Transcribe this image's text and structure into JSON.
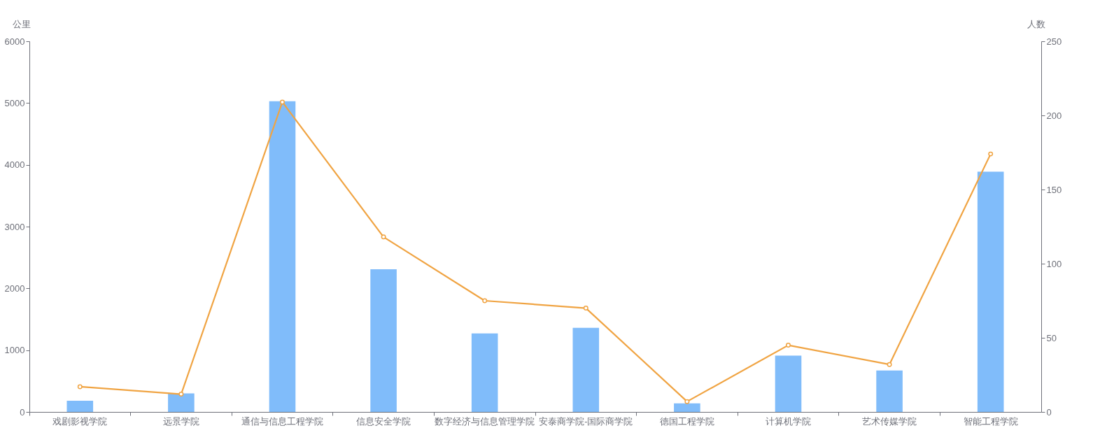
{
  "chart_data": {
    "type": "bar",
    "ylabel": "公里",
    "y2label": "人数",
    "categories": [
      "戏剧影视学院",
      "远景学院",
      "通信与信息工程学院",
      "信息安全学院",
      "数字经济与信息管理学院",
      "安泰商学院-国际商学院",
      "德国工程学院",
      "计算机学院",
      "艺术传媒学院",
      "智能工程学院"
    ],
    "series": [
      {
        "color": "#80bcfa",
        "values": [
          180,
          300,
          5030,
          2310,
          1270,
          1360,
          140,
          910,
          670,
          3890
        ]
      },
      {
        "type": "line",
        "axis": "y2",
        "color": "#f0a443",
        "marker": "circle",
        "values": [
          17,
          12,
          209,
          118,
          75,
          70,
          7,
          45,
          32,
          174
        ]
      }
    ],
    "ylim": [
      0,
      6000
    ],
    "yticks": [
      0,
      1000,
      2000,
      3000,
      4000,
      5000,
      6000
    ],
    "y2lim": [
      0,
      250
    ],
    "y2ticks": [
      0,
      50,
      100,
      150,
      200,
      250
    ],
    "grid": false
  }
}
